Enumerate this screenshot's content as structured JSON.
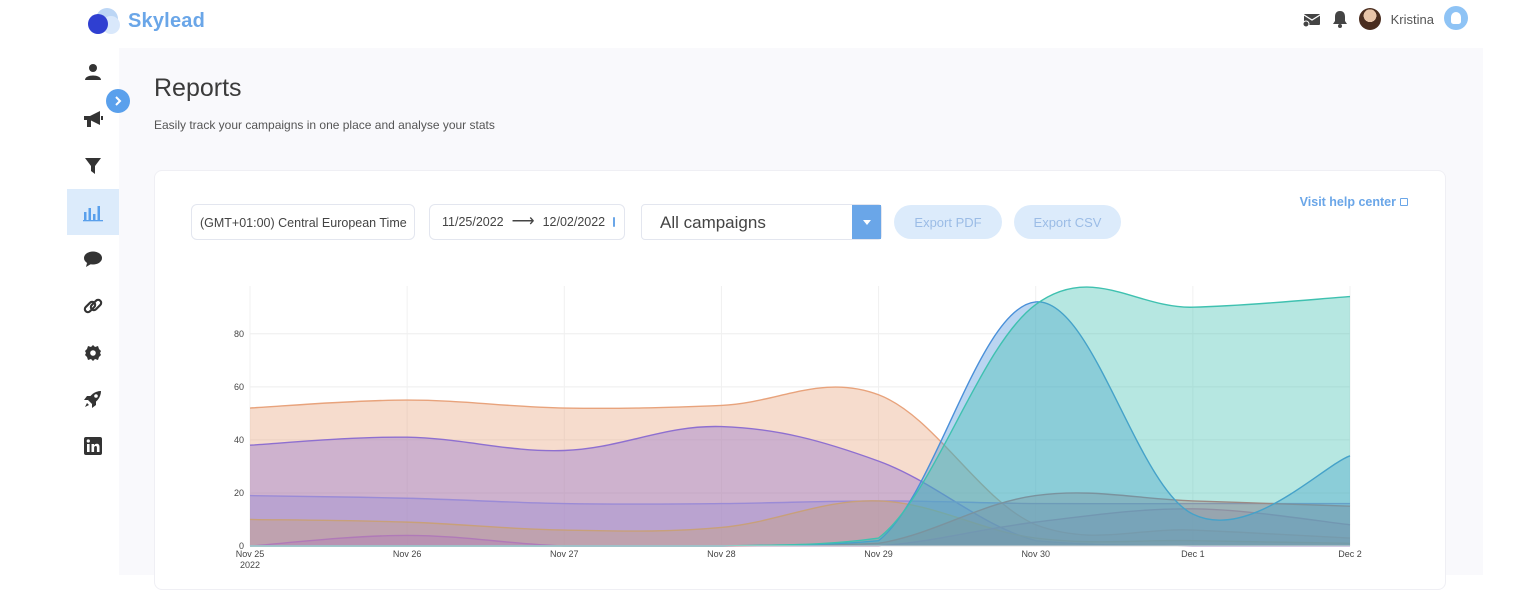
{
  "app": {
    "name": "Skylead"
  },
  "user": {
    "name": "Kristina"
  },
  "page": {
    "title": "Reports",
    "subtitle": "Easily track your campaigns in one place and analyse your stats"
  },
  "filters": {
    "timezone": "(GMT+01:00) Central European Time",
    "date_from": "11/25/2022",
    "date_to": "12/02/2022",
    "campaign": "All campaigns"
  },
  "buttons": {
    "export_pdf": "Export PDF",
    "export_csv": "Export CSV"
  },
  "help_link": "Visit help center",
  "sidebar": {
    "items": [
      {
        "icon": "person-icon"
      },
      {
        "icon": "megaphone-icon"
      },
      {
        "icon": "filter-icon"
      },
      {
        "icon": "chart-bar-icon",
        "active": true
      },
      {
        "icon": "chat-icon"
      },
      {
        "icon": "link-icon"
      },
      {
        "icon": "settings-icon"
      },
      {
        "icon": "rocket-icon"
      },
      {
        "icon": "linkedin-icon"
      }
    ]
  },
  "chart_data": {
    "type": "area",
    "x": [
      "Nov 25",
      "Nov 26",
      "Nov 27",
      "Nov 28",
      "Nov 29",
      "Nov 30",
      "Dec 1",
      "Dec 2"
    ],
    "x_year_label": "2022",
    "yticks": [
      0,
      20,
      40,
      60,
      80
    ],
    "ylim": [
      0,
      98
    ],
    "grid": true,
    "series": [
      {
        "color": "#e8a37c",
        "values": [
          52,
          55,
          52,
          53,
          57,
          8,
          6,
          3
        ]
      },
      {
        "color": "#8e6fd0",
        "values": [
          38,
          41,
          36,
          45,
          32,
          2,
          0,
          0
        ]
      },
      {
        "color": "#9b8bd6",
        "values": [
          19,
          18,
          16,
          16,
          17,
          16,
          16,
          16
        ]
      },
      {
        "color": "#c8a07a",
        "values": [
          10,
          9,
          6,
          7,
          17,
          3,
          2,
          1
        ]
      },
      {
        "color": "#b07ab8",
        "values": [
          0,
          4,
          0,
          0,
          0,
          9,
          14,
          8
        ]
      },
      {
        "color": "#d46a6a",
        "values": [
          0,
          0,
          0,
          0,
          1,
          19,
          17,
          15
        ]
      },
      {
        "color": "#4a90d9",
        "values": [
          0,
          0,
          0,
          0,
          2,
          92,
          12,
          34
        ]
      },
      {
        "color": "#3fc1b0",
        "values": [
          0,
          0,
          0,
          0,
          3,
          91,
          90,
          94
        ]
      }
    ]
  }
}
